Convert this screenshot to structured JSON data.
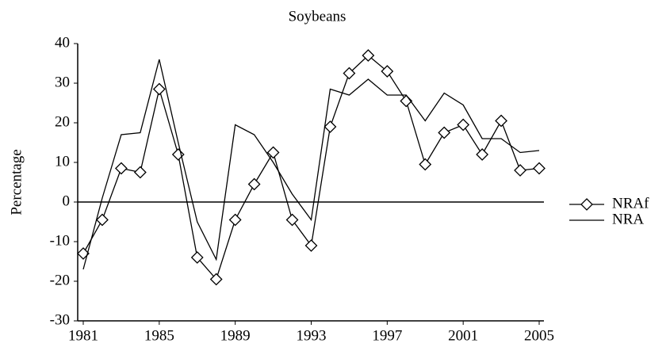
{
  "chart_data": {
    "type": "line",
    "title": "Soybeans",
    "y_label": "Percentage",
    "x": [
      1981,
      1982,
      1983,
      1984,
      1985,
      1986,
      1987,
      1988,
      1989,
      1990,
      1991,
      1992,
      1993,
      1994,
      1995,
      1996,
      1997,
      1998,
      1999,
      2000,
      2001,
      2002,
      2003,
      2004,
      2005
    ],
    "xlim": [
      1981,
      2005
    ],
    "xticks": [
      1981,
      1985,
      1989,
      1993,
      1997,
      2001,
      2005
    ],
    "ylim": [
      -30,
      40
    ],
    "yticks": [
      -30,
      -20,
      -10,
      0,
      10,
      20,
      30,
      40
    ],
    "legend": "right",
    "series": [
      {
        "name": "NRAf",
        "color": "#000000",
        "marker": "diamond",
        "values": [
          -13,
          -4.5,
          8.5,
          7.5,
          28.5,
          12,
          -14,
          -19.5,
          -4.5,
          4.5,
          12.5,
          -4.5,
          -11,
          19,
          32.5,
          37,
          33,
          25.5,
          9.5,
          17.5,
          19.5,
          12,
          20.5,
          8,
          8.5
        ]
      },
      {
        "name": "NRA",
        "color": "#000000",
        "marker": "none",
        "values": [
          -17,
          1,
          17,
          17.5,
          36,
          15,
          -5,
          -14.5,
          19.5,
          17,
          10,
          2,
          -4.5,
          28.5,
          27,
          31,
          27,
          27,
          20.5,
          27.5,
          24.5,
          16,
          16,
          12.5,
          13
        ]
      }
    ]
  }
}
